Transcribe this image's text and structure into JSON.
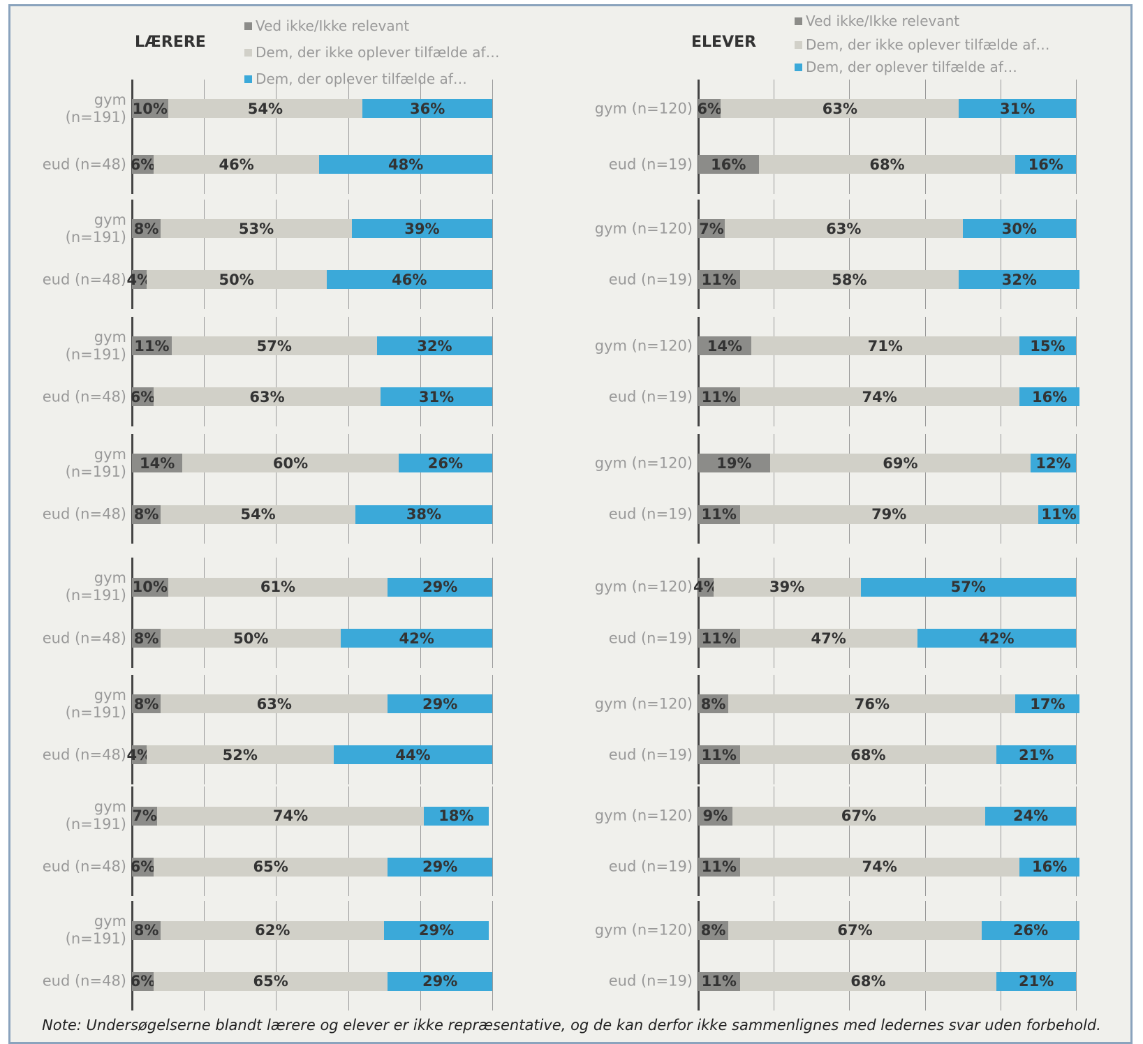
{
  "note": "Note: Undersøgelserne blandt lærere og elever er ikke repræsentative, og de kan derfor ikke sammenlignes med ledernes svar uden forbehold.",
  "chart_data": [
    {
      "type": "bar",
      "title": "LÆRERE",
      "categories": [
        "gym\n(n=191)",
        "eud (n=48)"
      ],
      "xlim": [
        0,
        100
      ],
      "xticks": [
        0,
        20,
        40,
        60,
        80,
        100
      ],
      "series": [
        {
          "name": "Ved ikke/Ikke relevant",
          "color": "#8c8c89",
          "values": [
            10,
            6
          ],
          "value_labels": [
            "10%",
            "6%"
          ]
        },
        {
          "name": "Dem, der ikke oplever tilfælde af…",
          "color": "#d1d0c8",
          "values": [
            54,
            46
          ],
          "value_labels": [
            "54%",
            "46%"
          ]
        },
        {
          "name": "Dem, der oplever tilfælde af…",
          "color": "#3ba9d9",
          "values": [
            36,
            48
          ],
          "value_labels": [
            "36%",
            "48%"
          ]
        }
      ]
    },
    {
      "type": "bar",
      "categories": [
        "gym\n(n=191)",
        "eud (n=48)"
      ],
      "xlim": [
        0,
        100
      ],
      "xticks": [
        0,
        20,
        40,
        60,
        80,
        100
      ],
      "series": [
        {
          "name": "Ved ikke/Ikke relevant",
          "color": "#8c8c89",
          "values": [
            8,
            4
          ],
          "value_labels": [
            "8%",
            "4%"
          ]
        },
        {
          "name": "Dem, der ikke oplever tilfælde af…",
          "color": "#d1d0c8",
          "values": [
            53,
            50
          ],
          "value_labels": [
            "53%",
            "50%"
          ]
        },
        {
          "name": "Dem, der oplever tilfælde af…",
          "color": "#3ba9d9",
          "values": [
            39,
            46
          ],
          "value_labels": [
            "39%",
            "46%"
          ]
        }
      ]
    },
    {
      "type": "bar",
      "categories": [
        "gym\n(n=191)",
        "eud (n=48)"
      ],
      "xlim": [
        0,
        100
      ],
      "xticks": [
        0,
        20,
        40,
        60,
        80,
        100
      ],
      "series": [
        {
          "name": "Ved ikke/Ikke relevant",
          "color": "#8c8c89",
          "values": [
            11,
            6
          ],
          "value_labels": [
            "11%",
            "6%"
          ]
        },
        {
          "name": "Dem, der ikke oplever tilfælde af…",
          "color": "#d1d0c8",
          "values": [
            57,
            63
          ],
          "value_labels": [
            "57%",
            "63%"
          ]
        },
        {
          "name": "Dem, der oplever tilfælde af…",
          "color": "#3ba9d9",
          "values": [
            32,
            31
          ],
          "value_labels": [
            "32%",
            "31%"
          ]
        }
      ]
    },
    {
      "type": "bar",
      "categories": [
        "gym\n(n=191)",
        "eud (n=48)"
      ],
      "xlim": [
        0,
        100
      ],
      "xticks": [
        0,
        20,
        40,
        60,
        80,
        100
      ],
      "series": [
        {
          "name": "Ved ikke/Ikke relevant",
          "color": "#8c8c89",
          "values": [
            14,
            8
          ],
          "value_labels": [
            "14%",
            "8%"
          ]
        },
        {
          "name": "Dem, der ikke oplever tilfælde af…",
          "color": "#d1d0c8",
          "values": [
            60,
            54
          ],
          "value_labels": [
            "60%",
            "54%"
          ]
        },
        {
          "name": "Dem, der oplever tilfælde af…",
          "color": "#3ba9d9",
          "values": [
            26,
            38
          ],
          "value_labels": [
            "26%",
            "38%"
          ]
        }
      ]
    },
    {
      "type": "bar",
      "categories": [
        "gym\n(n=191)",
        "eud (n=48)"
      ],
      "xlim": [
        0,
        100
      ],
      "xticks": [
        0,
        20,
        40,
        60,
        80,
        100
      ],
      "series": [
        {
          "name": "Ved ikke/Ikke relevant",
          "color": "#8c8c89",
          "values": [
            10,
            8
          ],
          "value_labels": [
            "10%",
            "8%"
          ]
        },
        {
          "name": "Dem, der ikke oplever tilfælde af…",
          "color": "#d1d0c8",
          "values": [
            61,
            50
          ],
          "value_labels": [
            "61%",
            "50%"
          ]
        },
        {
          "name": "Dem, der oplever tilfælde af…",
          "color": "#3ba9d9",
          "values": [
            29,
            42
          ],
          "value_labels": [
            "29%",
            "42%"
          ]
        }
      ]
    },
    {
      "type": "bar",
      "categories": [
        "gym\n(n=191)",
        "eud (n=48)"
      ],
      "xlim": [
        0,
        100
      ],
      "xticks": [
        0,
        20,
        40,
        60,
        80,
        100
      ],
      "series": [
        {
          "name": "Ved ikke/Ikke relevant",
          "color": "#8c8c89",
          "values": [
            8,
            4
          ],
          "value_labels": [
            "8%",
            "4%"
          ]
        },
        {
          "name": "Dem, der ikke oplever tilfælde af…",
          "color": "#d1d0c8",
          "values": [
            63,
            52
          ],
          "value_labels": [
            "63%",
            "52%"
          ]
        },
        {
          "name": "Dem, der oplever tilfælde af…",
          "color": "#3ba9d9",
          "values": [
            29,
            44
          ],
          "value_labels": [
            "29%",
            "44%"
          ]
        }
      ]
    },
    {
      "type": "bar",
      "categories": [
        "gym\n(n=191)",
        "eud (n=48)"
      ],
      "xlim": [
        0,
        100
      ],
      "xticks": [
        0,
        20,
        40,
        60,
        80,
        100
      ],
      "series": [
        {
          "name": "Ved ikke/Ikke relevant",
          "color": "#8c8c89",
          "values": [
            7,
            6
          ],
          "value_labels": [
            "7%",
            "6%"
          ]
        },
        {
          "name": "Dem, der ikke oplever tilfælde af…",
          "color": "#d1d0c8",
          "values": [
            74,
            65
          ],
          "value_labels": [
            "74%",
            "65%"
          ]
        },
        {
          "name": "Dem, der oplever tilfælde af…",
          "color": "#3ba9d9",
          "values": [
            18,
            29
          ],
          "value_labels": [
            "18%",
            "29%"
          ]
        }
      ]
    },
    {
      "type": "bar",
      "categories": [
        "gym\n(n=191)",
        "eud (n=48)"
      ],
      "xlim": [
        0,
        100
      ],
      "xticks": [
        0,
        20,
        40,
        60,
        80,
        100
      ],
      "series": [
        {
          "name": "Ved ikke/Ikke relevant",
          "color": "#8c8c89",
          "values": [
            8,
            6
          ],
          "value_labels": [
            "8%",
            "6%"
          ]
        },
        {
          "name": "Dem, der ikke oplever tilfælde af…",
          "color": "#d1d0c8",
          "values": [
            62,
            65
          ],
          "value_labels": [
            "62%",
            "65%"
          ]
        },
        {
          "name": "Dem, der oplever tilfælde af…",
          "color": "#3ba9d9",
          "values": [
            29,
            29
          ],
          "value_labels": [
            "29%",
            "29%"
          ]
        }
      ]
    },
    {
      "type": "bar",
      "title": "ELEVER",
      "categories": [
        "gym (n=120)",
        "eud (n=19)"
      ],
      "xlim": [
        0,
        100
      ],
      "xticks": [
        0,
        20,
        40,
        60,
        80,
        100
      ],
      "series": [
        {
          "name": "Ved ikke/Ikke relevant",
          "color": "#8c8c89",
          "values": [
            6,
            16
          ],
          "value_labels": [
            "6%",
            "16%"
          ]
        },
        {
          "name": "Dem, der ikke oplever tilfælde af…",
          "color": "#d1d0c8",
          "values": [
            63,
            68
          ],
          "value_labels": [
            "63%",
            "68%"
          ]
        },
        {
          "name": "Dem, der oplever tilfælde af…",
          "color": "#3ba9d9",
          "values": [
            31,
            16
          ],
          "value_labels": [
            "31%",
            "16%"
          ]
        }
      ]
    },
    {
      "type": "bar",
      "categories": [
        "gym (n=120)",
        "eud (n=19)"
      ],
      "xlim": [
        0,
        100
      ],
      "xticks": [
        0,
        20,
        40,
        60,
        80,
        100
      ],
      "series": [
        {
          "name": "Ved ikke/Ikke relevant",
          "color": "#8c8c89",
          "values": [
            7,
            11
          ],
          "value_labels": [
            "7%",
            "11%"
          ]
        },
        {
          "name": "Dem, der ikke oplever tilfælde af…",
          "color": "#d1d0c8",
          "values": [
            63,
            58
          ],
          "value_labels": [
            "63%",
            "58%"
          ]
        },
        {
          "name": "Dem, der oplever tilfælde af…",
          "color": "#3ba9d9",
          "values": [
            30,
            32
          ],
          "value_labels": [
            "30%",
            "32%"
          ]
        }
      ]
    },
    {
      "type": "bar",
      "categories": [
        "gym (n=120)",
        "eud (n=19)"
      ],
      "xlim": [
        0,
        100
      ],
      "xticks": [
        0,
        20,
        40,
        60,
        80,
        100
      ],
      "series": [
        {
          "name": "Ved ikke/Ikke relevant",
          "color": "#8c8c89",
          "values": [
            14,
            11
          ],
          "value_labels": [
            "14%",
            "11%"
          ]
        },
        {
          "name": "Dem, der ikke oplever tilfælde af…",
          "color": "#d1d0c8",
          "values": [
            71,
            74
          ],
          "value_labels": [
            "71%",
            "74%"
          ]
        },
        {
          "name": "Dem, der oplever tilfælde af…",
          "color": "#3ba9d9",
          "values": [
            15,
            16
          ],
          "value_labels": [
            "15%",
            "16%"
          ]
        }
      ]
    },
    {
      "type": "bar",
      "categories": [
        "gym (n=120)",
        "eud (n=19)"
      ],
      "xlim": [
        0,
        100
      ],
      "xticks": [
        0,
        20,
        40,
        60,
        80,
        100
      ],
      "series": [
        {
          "name": "Ved ikke/Ikke relevant",
          "color": "#8c8c89",
          "values": [
            19,
            11
          ],
          "value_labels": [
            "19%",
            "11%"
          ]
        },
        {
          "name": "Dem, der ikke oplever tilfælde af…",
          "color": "#d1d0c8",
          "values": [
            69,
            79
          ],
          "value_labels": [
            "69%",
            "79%"
          ]
        },
        {
          "name": "Dem, der oplever tilfælde af…",
          "color": "#3ba9d9",
          "values": [
            12,
            11
          ],
          "value_labels": [
            "12%",
            "11%"
          ]
        }
      ]
    },
    {
      "type": "bar",
      "categories": [
        "gym (n=120)",
        "eud (n=19)"
      ],
      "xlim": [
        0,
        100
      ],
      "xticks": [
        0,
        20,
        40,
        60,
        80,
        100
      ],
      "series": [
        {
          "name": "Ved ikke/Ikke relevant",
          "color": "#8c8c89",
          "values": [
            4,
            11
          ],
          "value_labels": [
            "4%",
            "11%"
          ]
        },
        {
          "name": "Dem, der ikke oplever tilfælde af…",
          "color": "#d1d0c8",
          "values": [
            39,
            47
          ],
          "value_labels": [
            "39%",
            "47%"
          ]
        },
        {
          "name": "Dem, der oplever tilfælde af…",
          "color": "#3ba9d9",
          "values": [
            57,
            42
          ],
          "value_labels": [
            "57%",
            "42%"
          ]
        }
      ]
    },
    {
      "type": "bar",
      "categories": [
        "gym (n=120)",
        "eud (n=19)"
      ],
      "xlim": [
        0,
        100
      ],
      "xticks": [
        0,
        20,
        40,
        60,
        80,
        100
      ],
      "series": [
        {
          "name": "Ved ikke/Ikke relevant",
          "color": "#8c8c89",
          "values": [
            8,
            11
          ],
          "value_labels": [
            "8%",
            "11%"
          ]
        },
        {
          "name": "Dem, der ikke oplever tilfælde af…",
          "color": "#d1d0c8",
          "values": [
            76,
            68
          ],
          "value_labels": [
            "76%",
            "68%"
          ]
        },
        {
          "name": "Dem, der oplever tilfælde af…",
          "color": "#3ba9d9",
          "values": [
            17,
            21
          ],
          "value_labels": [
            "17%",
            "21%"
          ]
        }
      ]
    },
    {
      "type": "bar",
      "categories": [
        "gym (n=120)",
        "eud (n=19)"
      ],
      "xlim": [
        0,
        100
      ],
      "xticks": [
        0,
        20,
        40,
        60,
        80,
        100
      ],
      "series": [
        {
          "name": "Ved ikke/Ikke relevant",
          "color": "#8c8c89",
          "values": [
            9,
            11
          ],
          "value_labels": [
            "9%",
            "11%"
          ]
        },
        {
          "name": "Dem, der ikke oplever tilfælde af…",
          "color": "#d1d0c8",
          "values": [
            67,
            74
          ],
          "value_labels": [
            "67%",
            "74%"
          ]
        },
        {
          "name": "Dem, der oplever tilfælde af…",
          "color": "#3ba9d9",
          "values": [
            24,
            16
          ],
          "value_labels": [
            "24%",
            "16%"
          ]
        }
      ]
    },
    {
      "type": "bar",
      "categories": [
        "gym (n=120)",
        "eud (n=19)"
      ],
      "xlim": [
        0,
        100
      ],
      "xticks": [
        0,
        20,
        40,
        60,
        80,
        100
      ],
      "series": [
        {
          "name": "Ved ikke/Ikke relevant",
          "color": "#8c8c89",
          "values": [
            8,
            11
          ],
          "value_labels": [
            "8%",
            "11%"
          ]
        },
        {
          "name": "Dem, der ikke oplever tilfælde af…",
          "color": "#d1d0c8",
          "values": [
            67,
            68
          ],
          "value_labels": [
            "67%",
            "68%"
          ]
        },
        {
          "name": "Dem, der oplever tilfælde af…",
          "color": "#3ba9d9",
          "values": [
            26,
            21
          ],
          "value_labels": [
            "26%",
            "21%"
          ]
        }
      ]
    }
  ]
}
